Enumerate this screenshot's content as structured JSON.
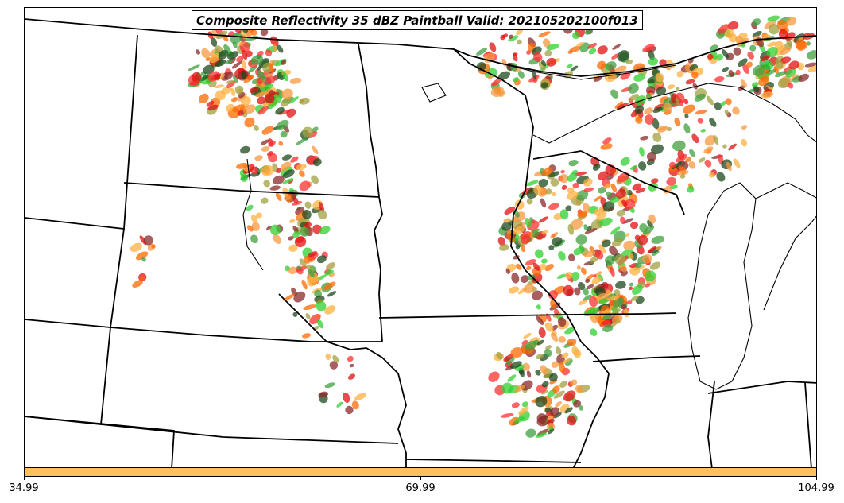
{
  "title": "Composite Reflectivity 35 dBZ Paintball Valid: 202105202100f013",
  "colorbar": {
    "color": "#ffc060",
    "tick_labels": [
      "34.99",
      "69.99",
      "104.99"
    ]
  },
  "map": {
    "boundary_color": "#000000",
    "paint_colors": [
      "#ff3030",
      "#f59a40",
      "#ffb040",
      "#30d030",
      "#40a040",
      "#a0a040",
      "#8b2a2a",
      "#1e4a1e",
      "#e01010",
      "#ff6a00"
    ]
  }
}
